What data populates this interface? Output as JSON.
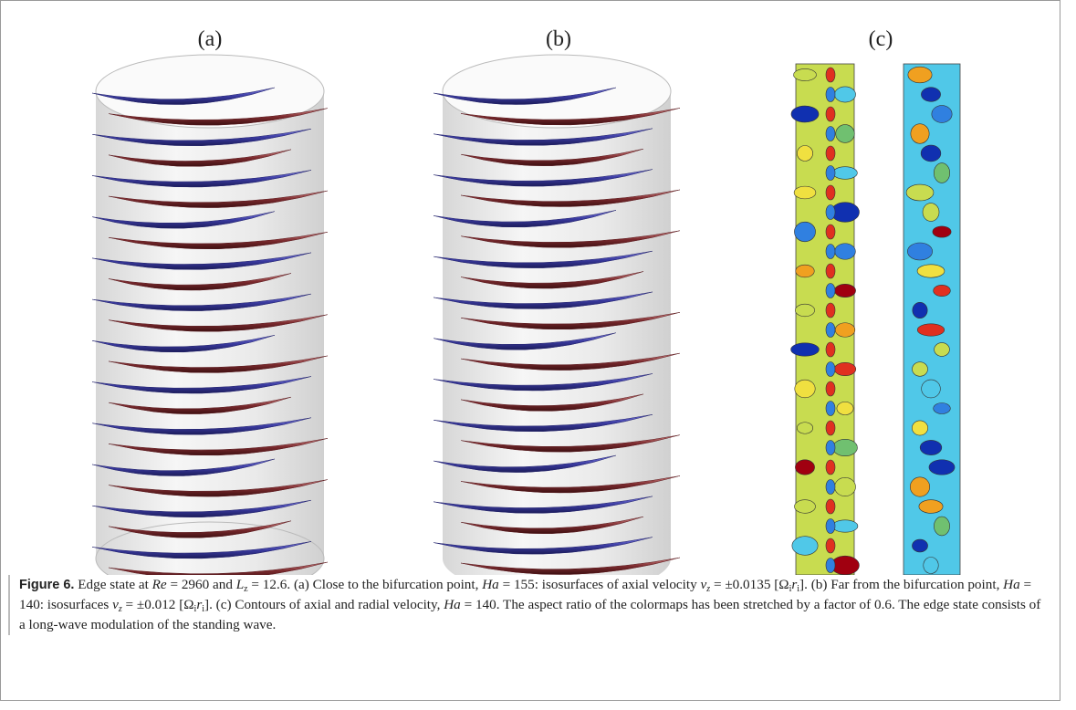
{
  "figure": {
    "panels": [
      "(a)",
      "(b)",
      "(c)"
    ],
    "caption": [
      "Figure 6.",
      " Edge state at ",
      "Re",
      " = 2960 and ",
      "L",
      "z",
      " = 12.6. (a) Close to the bifurcation point, ",
      "Ha",
      " = 155: isosurfaces of axial velocity ",
      "v",
      "z",
      " = ±0.0135 [Ω",
      "i",
      "r",
      "i",
      "]. (b) Far from the bifurcation point, ",
      "Ha",
      " = 140: isosurfaces ",
      "v",
      "z",
      " = ±0.012 [Ω",
      "i",
      "r",
      "i",
      "]. (c) Contours of axial and radial velocity, ",
      "Ha",
      " = 140. The aspect ratio of the colormaps has been stretched by a factor of 0.6. The edge state consists of a long-wave modulation of the standing wave."
    ]
  }
}
